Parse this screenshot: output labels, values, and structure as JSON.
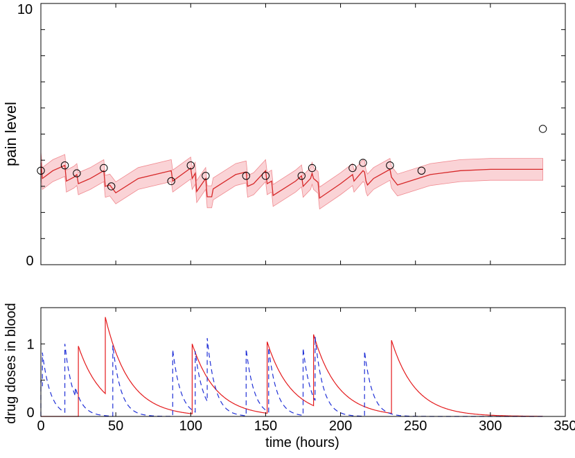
{
  "chart_data": [
    {
      "type": "line",
      "ylabel": "pain level",
      "xlim": [
        0,
        350
      ],
      "ylim": [
        0,
        10
      ],
      "y_tick_labels": [
        "0",
        "10"
      ],
      "y_ticks": [
        0,
        1,
        2,
        3,
        4,
        5,
        6,
        7,
        8,
        9,
        10
      ],
      "x_ticks": [
        0,
        50,
        100,
        150,
        200,
        250,
        300,
        350
      ],
      "band_halfwidth": 0.42,
      "colors": {
        "line": "#d62728",
        "band": "#f7b6ba",
        "marker": "#000000"
      },
      "observations": {
        "x": [
          0,
          16,
          24,
          42,
          47,
          87,
          100,
          110,
          137,
          150,
          174,
          181,
          208,
          215,
          233,
          254,
          335
        ],
        "y": [
          3.6,
          3.8,
          3.5,
          3.7,
          3.0,
          3.2,
          3.8,
          3.4,
          3.4,
          3.4,
          3.4,
          3.7,
          3.7,
          3.9,
          3.8,
          3.6,
          5.2
        ]
      },
      "model_mean": {
        "x": [
          0,
          1,
          8,
          16,
          17,
          22,
          24,
          25,
          33,
          42,
          43,
          46,
          48,
          50,
          65,
          87,
          88,
          100,
          101,
          103,
          104,
          110,
          111,
          114,
          115,
          130,
          137,
          138,
          142,
          150,
          151,
          154,
          155,
          170,
          174,
          175,
          180,
          181,
          182,
          185,
          186,
          200,
          208,
          209,
          215,
          216,
          217,
          218,
          222,
          233,
          234,
          236,
          238,
          260,
          280,
          300,
          335
        ],
        "y": [
          3.9,
          3.3,
          3.6,
          3.8,
          3.2,
          3.35,
          3.45,
          3.1,
          3.3,
          3.6,
          3.0,
          3.05,
          2.9,
          2.75,
          3.3,
          3.6,
          3.2,
          3.7,
          3.3,
          3.5,
          2.8,
          3.3,
          2.6,
          2.6,
          2.9,
          3.45,
          3.55,
          3.0,
          3.1,
          3.6,
          3.1,
          3.2,
          2.65,
          3.2,
          3.4,
          3.0,
          3.3,
          3.5,
          3.3,
          3.15,
          2.55,
          3.1,
          3.45,
          3.2,
          3.6,
          3.55,
          3.2,
          3.05,
          3.3,
          3.65,
          3.35,
          3.2,
          3.05,
          3.45,
          3.6,
          3.65,
          3.65
        ]
      }
    },
    {
      "type": "line",
      "xlabel": "time (hours)",
      "ylabel": "drug doses in blood",
      "xlim": [
        0,
        350
      ],
      "ylim": [
        0,
        1.5
      ],
      "x_tick_labels": [
        "0",
        "50",
        "100",
        "150",
        "200",
        "250",
        "300",
        "350"
      ],
      "y_tick_labels": [
        "0",
        "1"
      ],
      "y_ticks": [
        0,
        0.5,
        1
      ],
      "colors": {
        "solid": "#e41a1c",
        "dashed": "#1f2fd6"
      },
      "series": [
        {
          "style": "solid",
          "doses": [
            {
              "t": 25,
              "peak": 0.97
            },
            {
              "t": 43,
              "peak": 1.37
            },
            {
              "t": 101,
              "peak": 1.0
            },
            {
              "t": 151,
              "peak": 1.03
            },
            {
              "t": 182,
              "peak": 1.13
            },
            {
              "t": 234,
              "peak": 1.05
            }
          ],
          "decay_hours": 16
        },
        {
          "style": "dashed",
          "doses": [
            {
              "t": 0,
              "peak": 0.5
            },
            {
              "t": 1,
              "peak": 0.88
            },
            {
              "t": 16,
              "peak": 1.0
            },
            {
              "t": 23,
              "peak": 0.4
            },
            {
              "t": 48,
              "peak": 0.98
            },
            {
              "t": 88,
              "peak": 0.92
            },
            {
              "t": 103,
              "peak": 0.9
            },
            {
              "t": 111,
              "peak": 1.08
            },
            {
              "t": 137,
              "peak": 0.93
            },
            {
              "t": 152,
              "peak": 0.95
            },
            {
              "t": 175,
              "peak": 0.94
            },
            {
              "t": 183,
              "peak": 1.1
            },
            {
              "t": 216,
              "peak": 0.9
            }
          ],
          "decay_hours": 5.5
        }
      ]
    }
  ]
}
